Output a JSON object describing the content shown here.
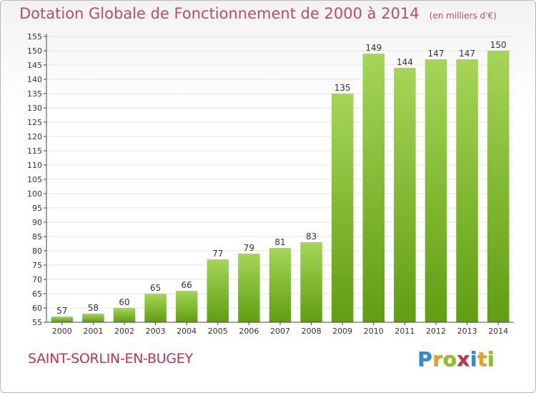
{
  "header": {
    "title": "Dotation Globale de Fonctionnement de 2000 à 2014",
    "unit": "(en milliers d'€)"
  },
  "footer": {
    "commune": "SAINT-SORLIN-EN-BUGEY",
    "logo_letters": [
      "P",
      "r",
      "o",
      "x",
      "i",
      "t",
      "i"
    ],
    "logo_colors": [
      "#2a8fd0",
      "#e8a416",
      "#8dc21f",
      "#c5304f",
      "#2a8fd0",
      "#e8a416",
      "#8dc21f"
    ]
  },
  "colors": {
    "bar_light": "#a6d557",
    "bar_dark": "#5f9e12",
    "title": "#c34a63",
    "axis": "#444444",
    "grid": "#e3e3e3"
  },
  "chart_data": {
    "type": "bar",
    "title": "Dotation Globale de Fonctionnement de 2000 à 2014",
    "subtitle": "(en milliers d'€)",
    "xlabel": "",
    "ylabel": "",
    "categories": [
      "2000",
      "2001",
      "2002",
      "2003",
      "2004",
      "2005",
      "2006",
      "2007",
      "2008",
      "2009",
      "2010",
      "2011",
      "2012",
      "2013",
      "2014"
    ],
    "values": [
      57,
      58,
      60,
      65,
      66,
      77,
      79,
      81,
      83,
      135,
      149,
      144,
      147,
      147,
      150
    ],
    "ylim": [
      55,
      155
    ],
    "yticks": [
      55,
      60,
      65,
      70,
      75,
      80,
      85,
      90,
      95,
      100,
      105,
      110,
      115,
      120,
      125,
      130,
      135,
      140,
      145,
      150,
      155
    ],
    "grid": true,
    "data_labels": true
  }
}
